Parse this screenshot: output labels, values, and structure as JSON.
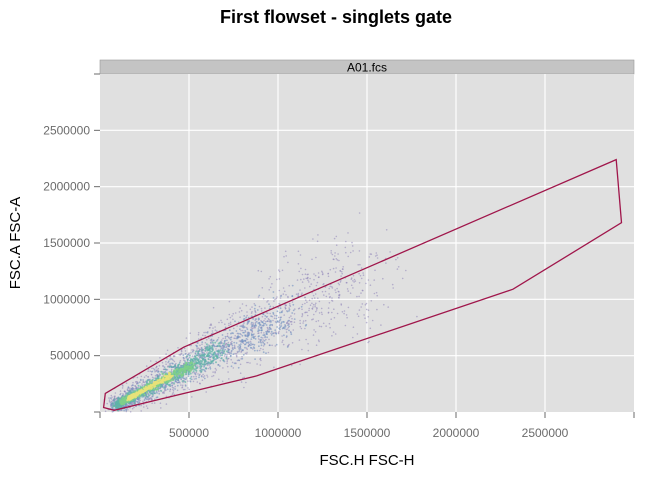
{
  "chart_data": {
    "type": "scatter",
    "title": "First flowset - singlets gate",
    "panel_label": "A01.fcs",
    "xlabel": "FSC.H FSC-H",
    "ylabel": "FSC.A FSC-A",
    "xlim": [
      0,
      3000000
    ],
    "ylim": [
      0,
      3000000
    ],
    "xticks": [
      {
        "value": 500000,
        "label": "500000"
      },
      {
        "value": 1000000,
        "label": "1000000"
      },
      {
        "value": 1500000,
        "label": "1500000"
      },
      {
        "value": 2000000,
        "label": "2000000"
      },
      {
        "value": 2500000,
        "label": "2500000"
      }
    ],
    "yticks": [
      {
        "value": 500000,
        "label": "500000"
      },
      {
        "value": 1000000,
        "label": "1000000"
      },
      {
        "value": 1500000,
        "label": "1500000"
      },
      {
        "value": 2000000,
        "label": "2000000"
      },
      {
        "value": 2500000,
        "label": "2500000"
      }
    ],
    "grid": true,
    "density_colors": [
      "#8e83b8",
      "#6f8fbf",
      "#5fb3a8",
      "#7fd08a",
      "#e8e27a"
    ],
    "gate_color": "#a0164b",
    "panel_background": "#e0e0e0",
    "strip_background": "#c4c4c4",
    "gate_polygon": [
      [
        30000,
        165000
      ],
      [
        470000,
        575000
      ],
      [
        2900000,
        2240000
      ],
      [
        2930000,
        1680000
      ],
      [
        2320000,
        1090000
      ],
      [
        880000,
        320000
      ],
      [
        80000,
        15000
      ],
      [
        20000,
        40000
      ]
    ],
    "population": {
      "description_free": true,
      "start": [
        90000,
        60000
      ],
      "end": [
        1500000,
        1250000
      ],
      "core_end": [
        600000,
        470000
      ],
      "spread": 55000
    }
  }
}
